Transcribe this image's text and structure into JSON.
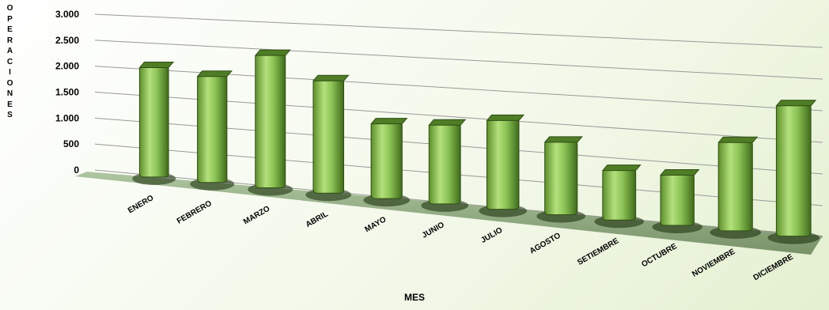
{
  "chart_data": {
    "type": "bar3d",
    "x_label": "MES",
    "y_label": "OPERACIONES",
    "categories": [
      "ENERO",
      "FEBRERO",
      "MARZO",
      "ABRIL",
      "MAYO",
      "JUNIO",
      "JULIO",
      "AGOSTO",
      "SETIEMBRE",
      "OCTUBRE",
      "NOVIEMBRE",
      "DICIEMBRE"
    ],
    "values": [
      2100,
      2000,
      2450,
      2050,
      1350,
      1400,
      1550,
      1250,
      850,
      850,
      1450,
      2100
    ],
    "color": "#7ab648",
    "ylim": [
      0,
      3000
    ],
    "yticks": [
      0,
      500,
      {
        "value": 1000,
        "label": "1.000"
      },
      {
        "value": 1500,
        "label": "1.500"
      },
      {
        "value": 2000,
        "label": "2.000"
      },
      {
        "value": 2500,
        "label": "2.500"
      },
      {
        "value": 3000,
        "label": "3.000"
      }
    ],
    "grid": true
  }
}
